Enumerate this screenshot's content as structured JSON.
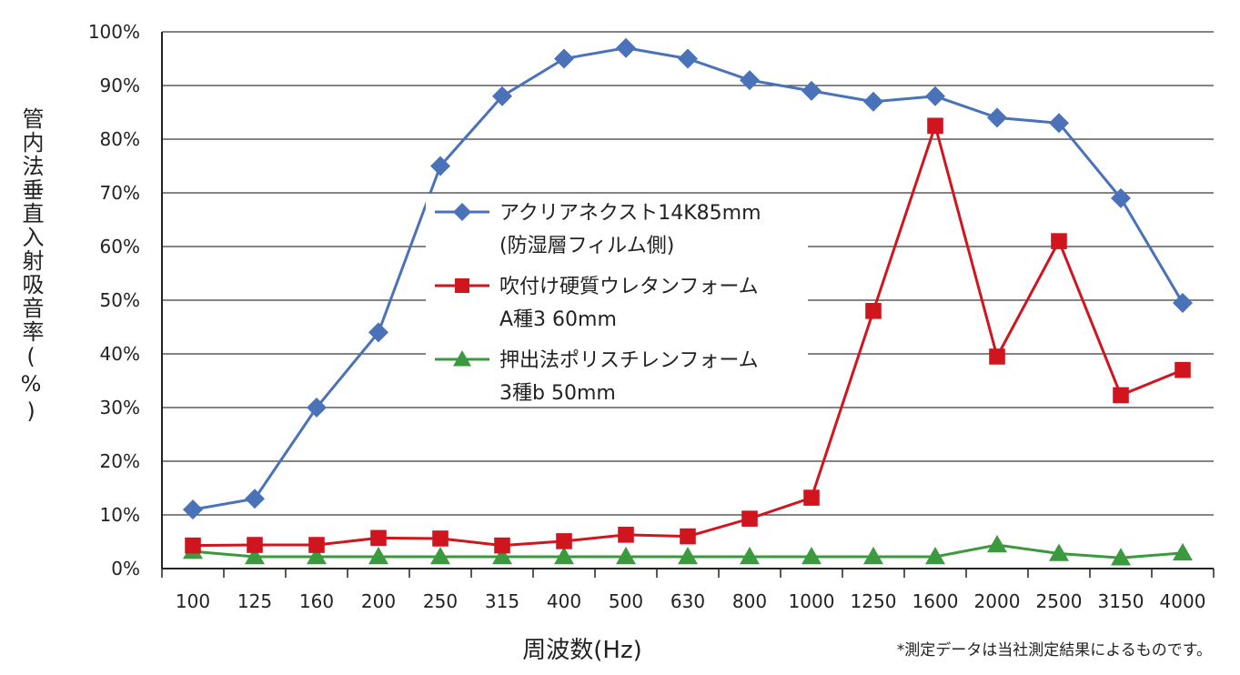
{
  "chart_data": {
    "type": "line",
    "xlabel": "周波数(Hz)",
    "ylabel": "管内法垂直入射吸音率(%)",
    "note": "*測定データは当社測定結果によるものです。",
    "ylim": [
      0,
      100
    ],
    "y_ticks": [
      "0%",
      "10%",
      "20%",
      "30%",
      "40%",
      "50%",
      "60%",
      "70%",
      "80%",
      "90%",
      "100%"
    ],
    "categories": [
      "100",
      "125",
      "160",
      "200",
      "250",
      "315",
      "400",
      "500",
      "630",
      "800",
      "1000",
      "1250",
      "1600",
      "2000",
      "2500",
      "3150",
      "4000"
    ],
    "grid": true,
    "legend_position": "center-left",
    "series": [
      {
        "name_line1": "アクリアネクスト14K85mm",
        "name_line2": "(防湿層フィルム側)",
        "color": "#4a72b8",
        "marker": "diamond",
        "values": [
          11,
          13,
          30,
          44,
          75,
          88,
          95,
          97,
          95,
          91,
          89,
          87,
          88,
          84,
          83,
          69,
          49.5
        ]
      },
      {
        "name_line1": "吹付け硬質ウレタンフォーム",
        "name_line2": "A種3 60mm",
        "color": "#d0151f",
        "marker": "square",
        "values": [
          4.3,
          4.4,
          4.4,
          5.7,
          5.6,
          4.3,
          5.1,
          6.3,
          6.0,
          9.3,
          13.2,
          48,
          82.5,
          39.5,
          61,
          32.3,
          37
        ]
      },
      {
        "name_line1": "押出法ポリスチレンフォーム",
        "name_line2": "3種b 50mm",
        "color": "#3b9a3d",
        "marker": "triangle",
        "values": [
          3.2,
          2.2,
          2.2,
          2.2,
          2.2,
          2.2,
          2.2,
          2.2,
          2.2,
          2.2,
          2.2,
          2.2,
          2.2,
          4.4,
          2.8,
          2.0,
          2.9
        ]
      }
    ]
  }
}
